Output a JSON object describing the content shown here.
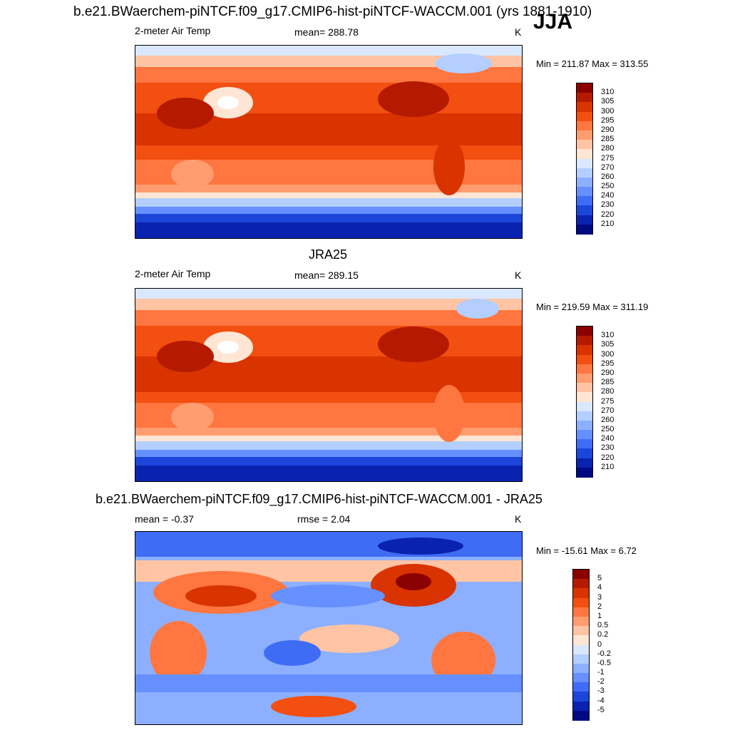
{
  "header": {
    "title": "b.e21.BWaerchem-piNTCF.f09_g17.CMIP6-hist-piNTCF-WACCM.001 (yrs 1881-1910)",
    "season": "JJA"
  },
  "panels": [
    {
      "variable": "2-meter Air Temp",
      "stat": "mean= 288.78",
      "units": "K",
      "minmax": "Min = 211.87 Max = 313.55"
    },
    {
      "title": "JRA25",
      "variable": "2-meter Air Temp",
      "stat": "mean= 289.15",
      "units": "K",
      "minmax": "Min = 219.59 Max = 311.19"
    },
    {
      "title": "b.e21.BWaerchem-piNTCF.f09_g17.CMIP6-hist-piNTCF-WACCM.001 - JRA25",
      "stat_mean": "mean =  -0.37",
      "stat_rmse": "rmse =   2.04",
      "units": "K",
      "minmax": "Min = -15.61 Max =   6.72"
    }
  ],
  "colorbars": {
    "temperature": {
      "labels": [
        "310",
        "305",
        "300",
        "295",
        "290",
        "285",
        "280",
        "275",
        "270",
        "260",
        "250",
        "240",
        "230",
        "220",
        "210"
      ],
      "colors": [
        "#8b0000",
        "#b51a00",
        "#d93300",
        "#f24f10",
        "#ff7640",
        "#ff9d70",
        "#ffc4a3",
        "#ffe6d4",
        "#d9e8ff",
        "#b3ceff",
        "#8cb0ff",
        "#6690ff",
        "#3f6cf5",
        "#1c46d9",
        "#0a22b0",
        "#000a80"
      ]
    },
    "difference": {
      "labels": [
        "5",
        "4",
        "3",
        "2",
        "1",
        "0.5",
        "0.2",
        "0",
        "-0.2",
        "-0.5",
        "-1",
        "-2",
        "-3",
        "-4",
        "-5"
      ],
      "colors": [
        "#8b0000",
        "#b51a00",
        "#d93300",
        "#f24f10",
        "#ff7640",
        "#ff9d70",
        "#ffc4a3",
        "#ffe6d4",
        "#d9e8ff",
        "#b3ceff",
        "#8cb0ff",
        "#6690ff",
        "#3f6cf5",
        "#1c46d9",
        "#0a22b0",
        "#000a80"
      ]
    }
  }
}
